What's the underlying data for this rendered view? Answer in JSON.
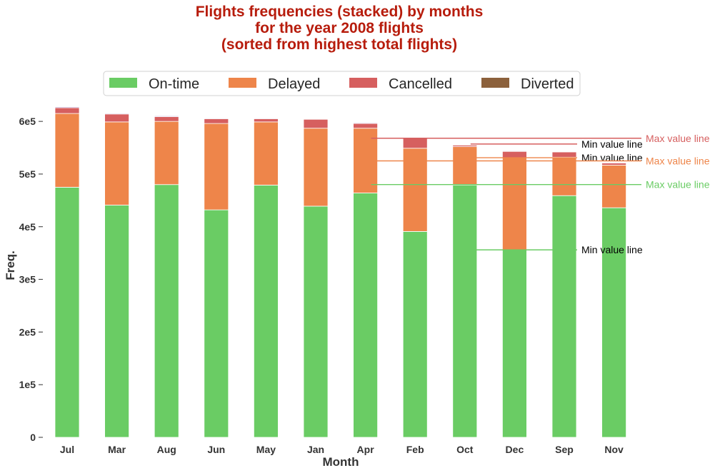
{
  "chart_data": {
    "type": "bar",
    "stacked": true,
    "title_lines": [
      "Flights frequencies (stacked) by months",
      "for the year 2008 flights",
      "(sorted from highest total flights)"
    ],
    "xlabel": "Month",
    "ylabel": "Freq.",
    "ylim": [
      0,
      630000
    ],
    "y_ticks": [
      {
        "value": 0,
        "label": "0"
      },
      {
        "value": 100000,
        "label": "1e5"
      },
      {
        "value": 200000,
        "label": "2e5"
      },
      {
        "value": 300000,
        "label": "3e5"
      },
      {
        "value": 400000,
        "label": "4e5"
      },
      {
        "value": 500000,
        "label": "5e5"
      },
      {
        "value": 600000,
        "label": "6e5"
      }
    ],
    "categories": [
      "Jul",
      "Mar",
      "Aug",
      "Jun",
      "May",
      "Jan",
      "Apr",
      "Feb",
      "Oct",
      "Dec",
      "Sep",
      "Nov"
    ],
    "legend_position": "top-center",
    "grid": false,
    "series": [
      {
        "name": "On-time",
        "color": "#6acc64",
        "values": [
          475000,
          441000,
          480000,
          432000,
          479000,
          439000,
          464000,
          391000,
          479000,
          356000,
          459000,
          436000
        ]
      },
      {
        "name": "Delayed",
        "color": "#ee854a",
        "values": [
          140000,
          158000,
          120000,
          164000,
          120000,
          148000,
          123000,
          158000,
          73000,
          175000,
          73000,
          81000
        ]
      },
      {
        "name": "Cancelled",
        "color": "#d65f5f",
        "values": [
          11000,
          15000,
          9000,
          9000,
          6000,
          17000,
          9000,
          20000,
          3000,
          12000,
          10000,
          4000
        ]
      },
      {
        "name": "Diverted",
        "color": "#956cb4",
        "values": [
          1600,
          1300,
          1400,
          1200,
          1200,
          1100,
          1300,
          1100,
          900,
          1200,
          1100,
          900
        ]
      }
    ],
    "reference_lines": [
      {
        "label": "Max value line",
        "series": "Cancelled",
        "value": 568000,
        "color": "#d65f5f",
        "label_color": "#d65f5f",
        "from_category": "Apr"
      },
      {
        "label": "Min value line",
        "series": "Cancelled",
        "value": 557000,
        "color": "#d65f5f",
        "label_color": "#000000",
        "from_category": "Oct"
      },
      {
        "label": "Min value line",
        "series": "Delayed",
        "value": 531000,
        "color": "#ee854a",
        "label_color": "#000000",
        "from_category": "Oct"
      },
      {
        "label": "Max value line",
        "series": "Delayed",
        "value": 525000,
        "color": "#ee854a",
        "label_color": "#ee854a",
        "from_category": "Apr"
      },
      {
        "label": "Max value line",
        "series": "On-time",
        "value": 480000,
        "color": "#6acc64",
        "label_color": "#6acc64",
        "from_category": "Apr"
      },
      {
        "label": "Min value line",
        "series": "On-time",
        "value": 356000,
        "color": "#6acc64",
        "label_color": "#000000",
        "from_category": "Oct"
      }
    ],
    "legend_swatch_colors": {
      "Diverted": "#8c613c"
    },
    "title_color": "#b71c0c"
  }
}
